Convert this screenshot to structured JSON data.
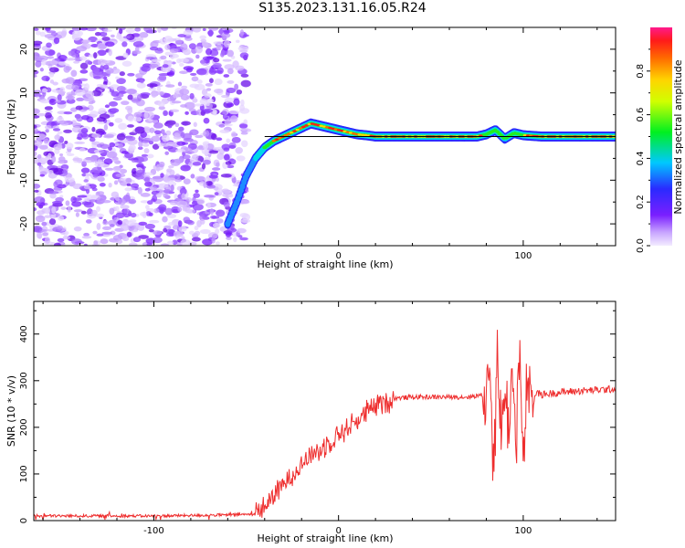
{
  "title": "S135.2023.131.16.05.R24",
  "colors": {
    "snr_line": "#ee2d2d",
    "noise_purple": "#7a1fff",
    "center_line": "#000000"
  },
  "chart_data": [
    {
      "type": "heatmap",
      "xlabel": "Height of straight line (km)",
      "ylabel": "Frequency (Hz)",
      "xlim": [
        -165,
        150
      ],
      "ylim": [
        -25,
        25
      ],
      "xticks": [
        -100,
        0,
        100
      ],
      "yticks": [
        -20,
        -10,
        0,
        10,
        20
      ],
      "colorbar": {
        "label": "Normalized spectral amplitude",
        "range": [
          0,
          1
        ],
        "ticks": [
          0.0,
          0.2,
          0.4,
          0.6,
          0.8
        ],
        "colormap": "rainbow: lavender (0) → purple → blue → cyan → green → yellow → orange → red → magenta (1)"
      },
      "noise_region_x": [
        -165,
        -50
      ],
      "ridge": {
        "x": [
          -60,
          -55,
          -50,
          -45,
          -40,
          -35,
          -30,
          -25,
          -20,
          -15,
          -10,
          -5,
          0,
          5,
          10,
          15,
          20,
          30,
          40,
          60,
          75,
          80,
          85,
          90,
          95,
          100,
          110,
          120,
          135,
          150
        ],
        "y": [
          -20,
          -15,
          -9,
          -5,
          -2.5,
          -1,
          0,
          1,
          2,
          3,
          2.5,
          2,
          1.5,
          1,
          0.5,
          0.3,
          0,
          0,
          0,
          0,
          0,
          0.5,
          1.5,
          -0.5,
          0.8,
          0.3,
          0,
          0,
          0,
          0
        ]
      },
      "reference_line": {
        "y": 0,
        "x_range": [
          -40,
          150
        ]
      }
    },
    {
      "type": "line",
      "xlabel": "Height of straight line (km)",
      "ylabel": "SNR (10 * v/v)",
      "xlim": [
        -165,
        150
      ],
      "ylim": [
        0,
        470
      ],
      "xticks": [
        -100,
        0,
        100
      ],
      "yticks": [
        0,
        100,
        200,
        300,
        400
      ],
      "series": [
        {
          "x": [
            -165,
            -140,
            -120,
            -100,
            -80,
            -60,
            -45,
            -40,
            -35,
            -30,
            -25,
            -20,
            -15,
            -10,
            -5,
            0,
            5,
            10,
            15,
            20,
            25,
            30,
            40,
            50,
            60,
            70,
            75,
            80,
            82,
            84,
            86,
            88,
            90,
            92,
            94,
            96,
            98,
            100,
            102,
            104,
            106,
            110,
            120,
            130,
            140,
            150
          ],
          "y": [
            10,
            10,
            10,
            10,
            11,
            12,
            14,
            30,
            55,
            75,
            100,
            120,
            140,
            150,
            170,
            185,
            200,
            215,
            230,
            245,
            255,
            262,
            265,
            265,
            265,
            265,
            268,
            270,
            330,
            120,
            360,
            180,
            280,
            200,
            320,
            150,
            380,
            90,
            300,
            240,
            275,
            270,
            275,
            278,
            280,
            282
          ]
        }
      ]
    }
  ]
}
